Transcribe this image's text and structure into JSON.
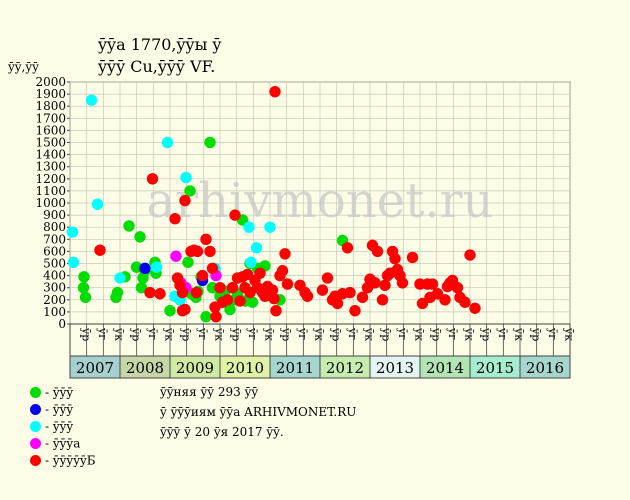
{
  "title": {
    "line1": "ȳȳa 1770,ȳȳы ȳ",
    "line2": "ȳȳȳ Cu,ȳȳȳ VF."
  },
  "ylabel": "ȳȳ,ȳȳ",
  "watermark": "arhivmonet.ru",
  "legend": [
    {
      "label": "- ȳȳȳ",
      "color": "#00dd00"
    },
    {
      "label": "- ȳȳȳ",
      "color": "#0000ee"
    },
    {
      "label": "- ȳȳȳ",
      "color": "#00ffff"
    },
    {
      "label": "- ȳȳȳa",
      "color": "#ff00ff"
    },
    {
      "label": "- ȳȳȳȳȳБ",
      "color": "#ff0000"
    }
  ],
  "info": {
    "line1": "ȳȳняя ȳȳ 293 ȳȳ",
    "line2": "ȳ ȳȳȳиям ȳȳa ARHIVMONET.RU",
    "line3": "ȳȳȳ ȳ 20 ȳя 2017 ȳȳ."
  },
  "chart_data": {
    "type": "scatter",
    "ylim": [
      0,
      2000
    ],
    "yticks": [
      0,
      100,
      200,
      300,
      400,
      500,
      600,
      700,
      800,
      900,
      1000,
      1100,
      1200,
      1300,
      1400,
      1500,
      1600,
      1700,
      1800,
      1900,
      2000
    ],
    "grid": true,
    "years": [
      {
        "label": "2007",
        "color": "#a6d0d0"
      },
      {
        "label": "2008",
        "color": "#c6d6a6"
      },
      {
        "label": "2009",
        "color": "#d0eaa6"
      },
      {
        "label": "2010",
        "color": "#dff2a6"
      },
      {
        "label": "2011",
        "color": "#a6d6d0"
      },
      {
        "label": "2012",
        "color": "#c6ecb0"
      },
      {
        "label": "2013",
        "color": "#e4f4f2"
      },
      {
        "label": "2014",
        "color": "#b2e4b6"
      },
      {
        "label": "2015",
        "color": "#a6ecd0"
      },
      {
        "label": "2016",
        "color": "#a6d6ce"
      }
    ],
    "subperiods": [
      "ȳр",
      "ȳг",
      "ȳк"
    ],
    "series": [
      {
        "color": "#00dd00",
        "points": [
          [
            0.28,
            390
          ],
          [
            0.27,
            300
          ],
          [
            0.31,
            220
          ],
          [
            0.92,
            220
          ],
          [
            0.95,
            260
          ],
          [
            1.1,
            390
          ],
          [
            1.18,
            810
          ],
          [
            1.33,
            470
          ],
          [
            1.4,
            720
          ],
          [
            1.43,
            300
          ],
          [
            1.46,
            380
          ],
          [
            1.5,
            440
          ],
          [
            1.7,
            510
          ],
          [
            1.72,
            420
          ],
          [
            2.0,
            110
          ],
          [
            2.1,
            230
          ],
          [
            2.2,
            200
          ],
          [
            2.36,
            510
          ],
          [
            2.4,
            1100
          ],
          [
            2.43,
            250
          ],
          [
            2.52,
            220
          ],
          [
            2.56,
            270
          ],
          [
            2.62,
            390
          ],
          [
            2.72,
            60
          ],
          [
            2.8,
            1500
          ],
          [
            2.85,
            300
          ],
          [
            2.9,
            450
          ],
          [
            3.0,
            230
          ],
          [
            3.1,
            270
          ],
          [
            3.2,
            120
          ],
          [
            3.3,
            200
          ],
          [
            3.35,
            250
          ],
          [
            3.45,
            860
          ],
          [
            3.5,
            190
          ],
          [
            3.6,
            500
          ],
          [
            3.65,
            180
          ],
          [
            3.75,
            460
          ],
          [
            3.9,
            480
          ],
          [
            4.2,
            200
          ],
          [
            5.45,
            690
          ]
        ]
      },
      {
        "color": "#0000ee",
        "points": [
          [
            1.5,
            460
          ],
          [
            2.65,
            360
          ]
        ]
      },
      {
        "color": "#00ffff",
        "points": [
          [
            0.05,
            760
          ],
          [
            0.07,
            510
          ],
          [
            0.43,
            1850
          ],
          [
            0.55,
            990
          ],
          [
            1.0,
            380
          ],
          [
            1.73,
            470
          ],
          [
            1.95,
            1500
          ],
          [
            2.1,
            230
          ],
          [
            2.2,
            200
          ],
          [
            2.32,
            1210
          ],
          [
            2.9,
            460
          ],
          [
            3.58,
            800
          ],
          [
            3.62,
            510
          ],
          [
            3.73,
            630
          ],
          [
            4.0,
            800
          ]
        ]
      },
      {
        "color": "#ff00ff",
        "points": [
          [
            2.12,
            560
          ],
          [
            2.22,
            340
          ],
          [
            2.32,
            300
          ],
          [
            2.92,
            400
          ]
        ]
      },
      {
        "color": "#ff0000",
        "points": [
          [
            0.6,
            610
          ],
          [
            1.6,
            260
          ],
          [
            1.65,
            1200
          ],
          [
            1.8,
            250
          ],
          [
            2.1,
            870
          ],
          [
            2.15,
            380
          ],
          [
            2.2,
            320
          ],
          [
            2.25,
            260
          ],
          [
            2.25,
            110
          ],
          [
            2.3,
            120
          ],
          [
            2.3,
            1020
          ],
          [
            2.42,
            600
          ],
          [
            2.48,
            610
          ],
          [
            2.53,
            260
          ],
          [
            2.55,
            600
          ],
          [
            2.65,
            400
          ],
          [
            2.72,
            700
          ],
          [
            2.8,
            600
          ],
          [
            2.85,
            460
          ],
          [
            2.9,
            140
          ],
          [
            2.92,
            60
          ],
          [
            3.0,
            300
          ],
          [
            3.05,
            180
          ],
          [
            3.15,
            200
          ],
          [
            3.25,
            300
          ],
          [
            3.3,
            900
          ],
          [
            3.35,
            380
          ],
          [
            3.4,
            190
          ],
          [
            3.45,
            390
          ],
          [
            3.5,
            300
          ],
          [
            3.55,
            410
          ],
          [
            3.6,
            260
          ],
          [
            3.7,
            360
          ],
          [
            3.75,
            300
          ],
          [
            3.8,
            420
          ],
          [
            3.85,
            260
          ],
          [
            3.9,
            230
          ],
          [
            3.95,
            310
          ],
          [
            4.05,
            280
          ],
          [
            4.08,
            210
          ],
          [
            4.1,
            1920
          ],
          [
            4.12,
            110
          ],
          [
            4.2,
            400
          ],
          [
            4.25,
            440
          ],
          [
            4.3,
            580
          ],
          [
            4.35,
            330
          ],
          [
            4.6,
            320
          ],
          [
            4.7,
            260
          ],
          [
            4.75,
            230
          ],
          [
            5.05,
            280
          ],
          [
            5.15,
            380
          ],
          [
            5.25,
            200
          ],
          [
            5.3,
            230
          ],
          [
            5.35,
            170
          ],
          [
            5.45,
            250
          ],
          [
            5.55,
            630
          ],
          [
            5.6,
            260
          ],
          [
            5.7,
            110
          ],
          [
            5.85,
            220
          ],
          [
            5.95,
            300
          ],
          [
            6.0,
            370
          ],
          [
            6.05,
            650
          ],
          [
            6.1,
            340
          ],
          [
            6.15,
            600
          ],
          [
            6.25,
            200
          ],
          [
            6.3,
            320
          ],
          [
            6.35,
            400
          ],
          [
            6.4,
            420
          ],
          [
            6.45,
            600
          ],
          [
            6.5,
            540
          ],
          [
            6.55,
            450
          ],
          [
            6.6,
            400
          ],
          [
            6.65,
            340
          ],
          [
            6.85,
            550
          ],
          [
            7.0,
            330
          ],
          [
            7.05,
            170
          ],
          [
            7.15,
            330
          ],
          [
            7.2,
            220
          ],
          [
            7.25,
            330
          ],
          [
            7.35,
            250
          ],
          [
            7.5,
            200
          ],
          [
            7.55,
            310
          ],
          [
            7.6,
            340
          ],
          [
            7.65,
            360
          ],
          [
            7.75,
            300
          ],
          [
            7.8,
            220
          ],
          [
            7.9,
            180
          ],
          [
            8.0,
            570
          ],
          [
            8.1,
            130
          ]
        ]
      }
    ]
  }
}
